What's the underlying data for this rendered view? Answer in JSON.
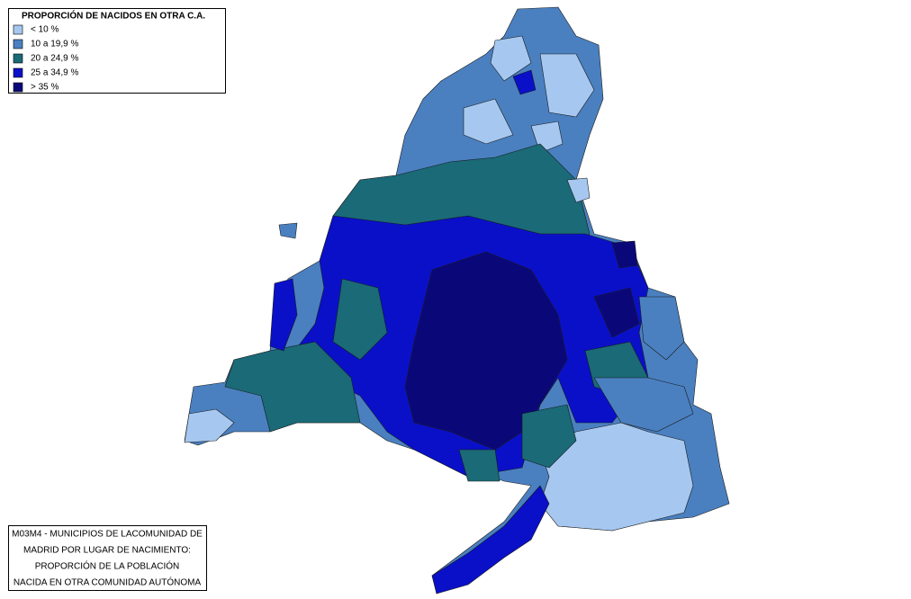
{
  "legend": {
    "title": "PROPORCIÓN DE NACIDOS EN OTRA C.A.",
    "items": [
      {
        "label": "< 10 %",
        "color": "#a6c8f0"
      },
      {
        "label": "10 a 19,9 %",
        "color": "#4a80c0"
      },
      {
        "label": "20 a 24,9 %",
        "color": "#1a6a78"
      },
      {
        "label": "25 a 34,9 %",
        "color": "#0a10c8"
      },
      {
        "label": "> 35 %",
        "color": "#0a0878"
      }
    ]
  },
  "caption": {
    "lines": [
      "M03M4 - MUNICIPIOS DE LACOMUNIDAD DE",
      "MADRID POR LUGAR DE  NACIMIENTO:",
      "PROPORCIÓN DE LA POBLACIÓN",
      "NACIDA EN OTRA COMUNIDAD AUTÓNOMA"
    ]
  }
}
